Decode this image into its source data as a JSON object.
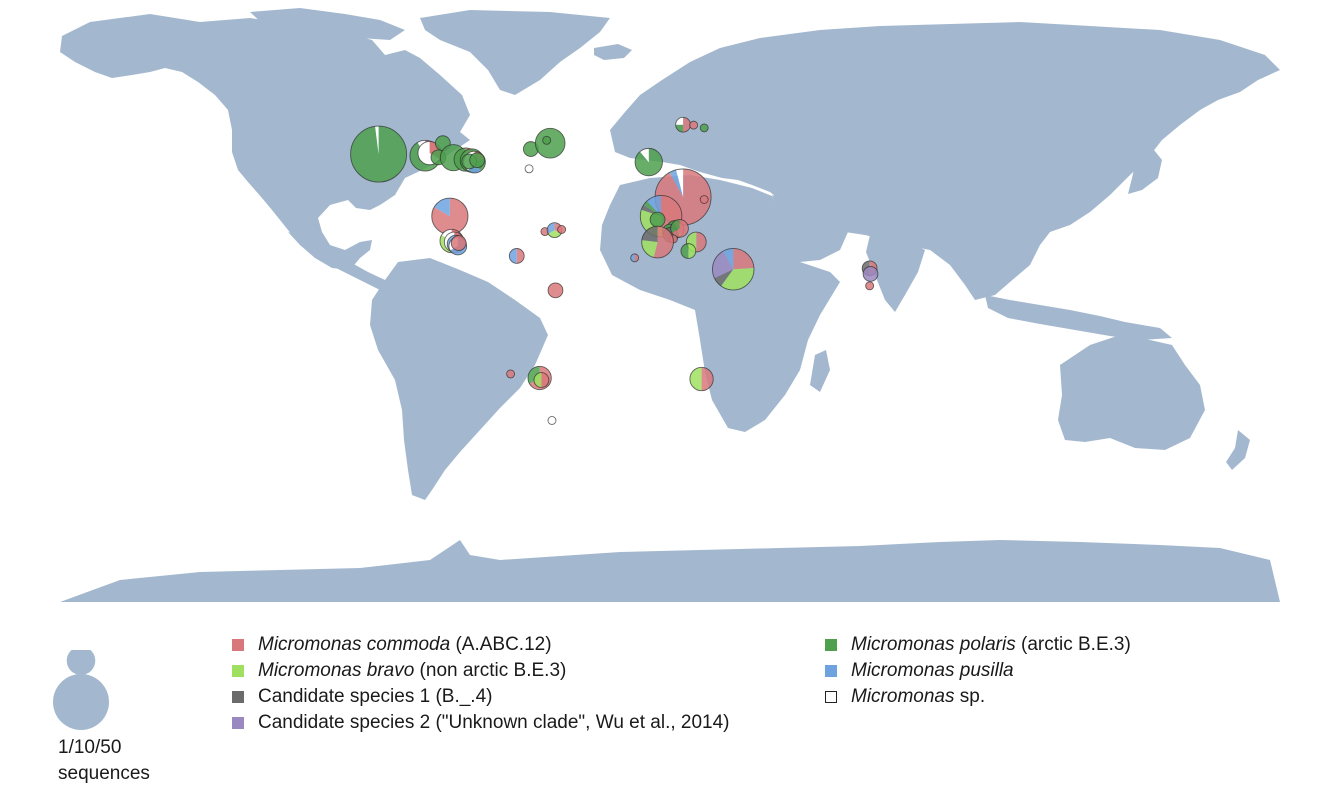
{
  "colors": {
    "land": "#a3b8cf",
    "commoda": "#d9787b",
    "bravo": "#9fe060",
    "polaris": "#4e9f4e",
    "pusilla": "#6fa3e0",
    "cand1": "#6b6b6b",
    "cand2": "#9a88c0",
    "sp": "#ffffff"
  },
  "legend": {
    "col1": [
      {
        "key": "commoda",
        "italic": "Micromonas commoda",
        "rest": " (A.ABC.12)",
        "swatch_icon": "square-swatch"
      },
      {
        "key": "bravo",
        "italic": "Micromonas bravo",
        "rest": " (non arctic B.E.3)",
        "swatch_icon": "square-swatch"
      },
      {
        "key": "cand1",
        "italic": "",
        "rest": "Candidate species 1 (B._.4)",
        "swatch_icon": "square-swatch"
      },
      {
        "key": "cand2",
        "italic": "",
        "rest": "Candidate species 2 (\"Unknown clade\", Wu et al., 2014)",
        "swatch_icon": "square-swatch"
      }
    ],
    "col2": [
      {
        "key": "polaris",
        "italic": "Micromonas polaris",
        "rest": " (arctic B.E.3)",
        "swatch_icon": "square-swatch"
      },
      {
        "key": "pusilla",
        "italic": "Micromonas pusilla",
        "rest": "",
        "swatch_icon": "square-swatch"
      },
      {
        "key": "sp",
        "italic": "Micromonas",
        "rest": " sp.",
        "swatch_icon": "hollow-square-swatch"
      }
    ]
  },
  "size_legend": {
    "line1": "1/10/50",
    "line2": "sequences",
    "counts": [
      1,
      10,
      50
    ]
  },
  "sites": [
    {
      "id": "alaska-beaufort",
      "lon": -165,
      "lat": 71.5,
      "n": 50,
      "slices": {
        "polaris": 49,
        "sp": 1
      }
    },
    {
      "id": "beaufort-1",
      "lon": -138.5,
      "lat": 71,
      "n": 12,
      "slices": {
        "polaris": 9,
        "commoda": 2,
        "sp": 1
      }
    },
    {
      "id": "beaufort-2",
      "lon": -136,
      "lat": 71.8,
      "n": 6,
      "slices": {
        "commoda": 2,
        "sp": 4
      }
    },
    {
      "id": "beaufort-3",
      "lon": -128.5,
      "lat": 74.7,
      "n": 2,
      "slices": {
        "polaris": 2
      }
    },
    {
      "id": "beaufort-4",
      "lon": -131,
      "lat": 70.5,
      "n": 2,
      "slices": {
        "polaris": 2
      }
    },
    {
      "id": "beaufort-5",
      "lon": -122.5,
      "lat": 70.4,
      "n": 8,
      "slices": {
        "polaris": 8
      }
    },
    {
      "id": "arch-1",
      "lon": -115.5,
      "lat": 69.8,
      "n": 6,
      "slices": {
        "polaris": 5,
        "commoda": 1
      }
    },
    {
      "id": "arch-2",
      "lon": -112,
      "lat": 69.5,
      "n": 6,
      "slices": {
        "polaris": 6
      }
    },
    {
      "id": "arch-3",
      "lon": -110.5,
      "lat": 69,
      "n": 5,
      "slices": {
        "commoda": 1,
        "pusilla": 1,
        "polaris": 1,
        "sp": 2
      }
    },
    {
      "id": "arch-4",
      "lon": -113.5,
      "lat": 69.2,
      "n": 2,
      "slices": {
        "polaris": 2
      }
    },
    {
      "id": "arch-5",
      "lon": -109,
      "lat": 69.6,
      "n": 2,
      "slices": {
        "polaris": 2
      }
    },
    {
      "id": "baffin-1",
      "lon": -78.5,
      "lat": 73,
      "n": 2,
      "slices": {
        "polaris": 2
      }
    },
    {
      "id": "baffin-2",
      "lon": -79.5,
      "lat": 66.8,
      "n": 1,
      "slices": {
        "sp": 1
      }
    },
    {
      "id": "baffin-3",
      "lon": -67.5,
      "lat": 74.7,
      "n": 11,
      "slices": {
        "polaris": 11
      }
    },
    {
      "id": "baffin-4",
      "lon": -69.5,
      "lat": 75.5,
      "n": 1,
      "slices": {
        "polaris": 1
      }
    },
    {
      "id": "greenland-sea",
      "lon": -11.5,
      "lat": 69,
      "n": 9,
      "slices": {
        "polaris": 8,
        "sp": 1
      }
    },
    {
      "id": "svalbard-1",
      "lon": 8,
      "lat": 79.6,
      "n": 2,
      "slices": {
        "commoda": 1,
        "polaris": 0.5,
        "sp": 0.5
      }
    },
    {
      "id": "svalbard-2",
      "lon": 14,
      "lat": 79.5,
      "n": 1,
      "slices": {
        "commoda": 1
      }
    },
    {
      "id": "svalbard-3",
      "lon": 20,
      "lat": 78.8,
      "n": 1,
      "slices": {
        "polaris": 1
      }
    },
    {
      "id": "north-sea",
      "lon": 8,
      "lat": 56.5,
      "n": 50,
      "slices": {
        "commoda": 46,
        "pusilla": 2,
        "sp": 2
      }
    },
    {
      "id": "baltic",
      "lon": 20,
      "lat": 55.5,
      "n": 1,
      "slices": {
        "commoda": 1
      }
    },
    {
      "id": "english-channel",
      "lon": -4.5,
      "lat": 48.5,
      "n": 25,
      "slices": {
        "commoda": 12,
        "bravo": 8,
        "pusilla": 3,
        "cand1": 1,
        "polaris": 1
      }
    },
    {
      "id": "biscay",
      "lon": -6.5,
      "lat": 47,
      "n": 2,
      "slices": {
        "polaris": 2
      }
    },
    {
      "id": "gulf-lion",
      "lon": 3.5,
      "lat": 42.5,
      "n": 3,
      "slices": {
        "commoda": 1,
        "polaris": 1,
        "bravo": 1
      }
    },
    {
      "id": "med-w1",
      "lon": 0.5,
      "lat": 41.5,
      "n": 2,
      "slices": {
        "polaris": 1,
        "cand1": 1
      }
    },
    {
      "id": "med-w2",
      "lon": 1,
      "lat": 40,
      "n": 2,
      "slices": {
        "cand1": 2
      }
    },
    {
      "id": "ligurian",
      "lon": 6,
      "lat": 43,
      "n": 3,
      "slices": {
        "polaris": 1,
        "commoda": 2
      }
    },
    {
      "id": "med-w3",
      "lon": 2.5,
      "lat": 38,
      "n": 1,
      "slices": {
        "commoda": 1
      }
    },
    {
      "id": "alboran",
      "lon": -6.5,
      "lat": 36.5,
      "n": 13,
      "slices": {
        "commoda": 7,
        "bravo": 3,
        "cand1": 3
      }
    },
    {
      "id": "ionian",
      "lon": 15.5,
      "lat": 36.5,
      "n": 4,
      "slices": {
        "commoda": 2,
        "bravo": 2
      }
    },
    {
      "id": "libya",
      "lon": 11,
      "lat": 32,
      "n": 2,
      "slices": {
        "bravo": 1,
        "polaris": 1
      }
    },
    {
      "id": "red-sea",
      "lon": 36.5,
      "lat": 22.5,
      "n": 25,
      "slices": {
        "commoda": 6,
        "cand1": 2,
        "cand2": 6,
        "pusilla": 2,
        "bravo": 9
      }
    },
    {
      "id": "canaries",
      "lon": -19.5,
      "lat": 28.5,
      "n": 1,
      "slices": {
        "pusilla": 1,
        "commoda": 1
      }
    },
    {
      "id": "washington",
      "lon": -124.5,
      "lat": 48.5,
      "n": 18,
      "slices": {
        "commoda": 15,
        "pusilla": 3
      }
    },
    {
      "id": "california-1",
      "lon": -123.5,
      "lat": 37,
      "n": 6,
      "slices": {
        "bravo": 3,
        "commoda": 2,
        "sp": 1
      }
    },
    {
      "id": "california-2",
      "lon": -122,
      "lat": 36.5,
      "n": 4,
      "slices": {
        "commoda": 1,
        "bravo": 1,
        "sp": 2
      }
    },
    {
      "id": "california-3",
      "lon": -121,
      "lat": 35.5,
      "n": 3,
      "slices": {
        "commoda": 2,
        "pusilla": 1
      }
    },
    {
      "id": "california-4",
      "lon": -120,
      "lat": 34.5,
      "n": 3,
      "slices": {
        "pusilla": 2,
        "sp": 1
      }
    },
    {
      "id": "california-5",
      "lon": -119.5,
      "lat": 36,
      "n": 2,
      "slices": {
        "commoda": 2
      }
    },
    {
      "id": "gulf-mexico",
      "lon": -86.5,
      "lat": 29.5,
      "n": 2,
      "slices": {
        "commoda": 1,
        "pusilla": 1
      }
    },
    {
      "id": "ne-us-1",
      "lon": -70.5,
      "lat": 41.5,
      "n": 1,
      "slices": {
        "commoda": 1
      }
    },
    {
      "id": "ne-us-2",
      "lon": -65,
      "lat": 42.2,
      "n": 2,
      "slices": {
        "commoda": 1,
        "pusilla": 1,
        "bravo": 1
      }
    },
    {
      "id": "ne-us-3",
      "lon": -61,
      "lat": 42.5,
      "n": 1,
      "slices": {
        "commoda": 1
      }
    },
    {
      "id": "caribbean",
      "lon": -64.5,
      "lat": 11,
      "n": 2,
      "slices": {
        "commoda": 2
      }
    },
    {
      "id": "hong-kong",
      "lon": 114,
      "lat": 23,
      "n": 2,
      "slices": {
        "commoda": 1,
        "cand1": 1
      }
    },
    {
      "id": "china-sea-1",
      "lon": 114.5,
      "lat": 20,
      "n": 2,
      "slices": {
        "cand2": 2
      }
    },
    {
      "id": "china-sea-2",
      "lon": 114,
      "lat": 13.5,
      "n": 1,
      "slices": {
        "commoda": 1
      }
    },
    {
      "id": "chile-1",
      "lon": -73.5,
      "lat": -36.5,
      "n": 6,
      "slices": {
        "commoda": 4,
        "polaris": 2
      }
    },
    {
      "id": "chile-2",
      "lon": -72.5,
      "lat": -37.5,
      "n": 2,
      "slices": {
        "commoda": 1,
        "bravo": 1
      }
    },
    {
      "id": "chile-offshore",
      "lon": -90,
      "lat": -34.5,
      "n": 1,
      "slices": {
        "commoda": 1
      }
    },
    {
      "id": "drake",
      "lon": -66.5,
      "lat": -55.5,
      "n": 1,
      "slices": {
        "sp": 1
      }
    },
    {
      "id": "south-africa",
      "lon": 18.5,
      "lat": -37,
      "n": 6,
      "slices": {
        "commoda": 3,
        "bravo": 3
      }
    }
  ]
}
